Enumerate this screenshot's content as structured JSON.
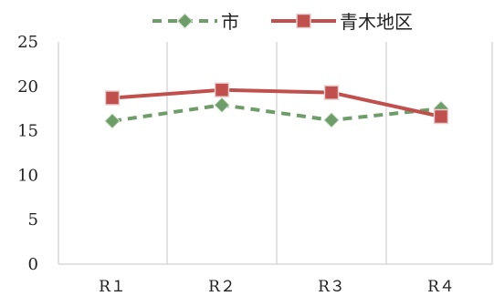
{
  "chart_data": {
    "type": "line",
    "categories": [
      "R１",
      "R２",
      "R３",
      "R４"
    ],
    "ylim": [
      0,
      25
    ],
    "yticks": [
      "0",
      "5",
      "10",
      "15",
      "20",
      "25"
    ],
    "grid": "vertical",
    "legend_position": "top",
    "series": [
      {
        "name": "市",
        "values": [
          16.1,
          17.9,
          16.2,
          17.5
        ],
        "color": "#6f9d6a",
        "line_style": "dashed",
        "marker": "diamond-icon"
      },
      {
        "name": "青木地区",
        "values": [
          18.7,
          19.6,
          19.3,
          16.6
        ],
        "color": "#c0504d",
        "line_style": "solid",
        "marker": "square-icon"
      }
    ]
  }
}
